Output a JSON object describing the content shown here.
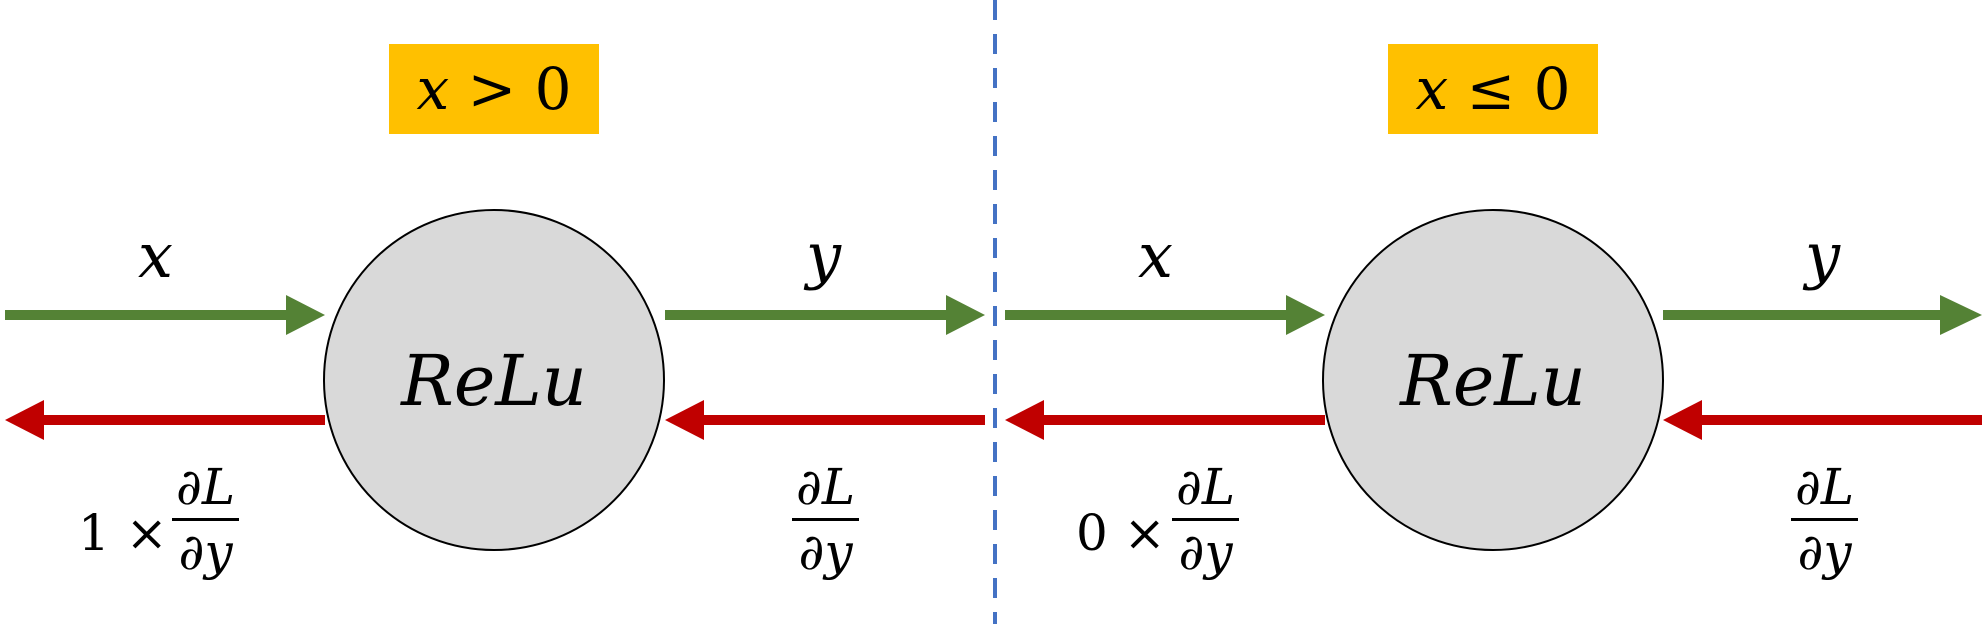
{
  "left_panel": {
    "condition": "x > 0",
    "condition_var": "x",
    "condition_op": ">",
    "condition_val": "0",
    "input_label": "x",
    "output_label": "y",
    "node_label": "ReLu",
    "backward_in_num": "∂L",
    "backward_in_den": "∂y",
    "backward_out_coef": "1 ×",
    "backward_out_num": "∂L",
    "backward_out_den": "∂y"
  },
  "right_panel": {
    "condition": "x ≤ 0",
    "condition_var": "x",
    "condition_op": "≤",
    "condition_val": "0",
    "input_label": "x",
    "output_label": "y",
    "node_label": "ReLu",
    "backward_in_num": "∂L",
    "backward_in_den": "∂y",
    "backward_out_coef": "0 ×",
    "backward_out_num": "∂L",
    "backward_out_den": "∂y"
  },
  "colors": {
    "forward": "#548235",
    "backward": "#C00000",
    "condition_bg": "#FFC000",
    "node_fill": "#D9D9D9",
    "divider": "#4472C4"
  }
}
